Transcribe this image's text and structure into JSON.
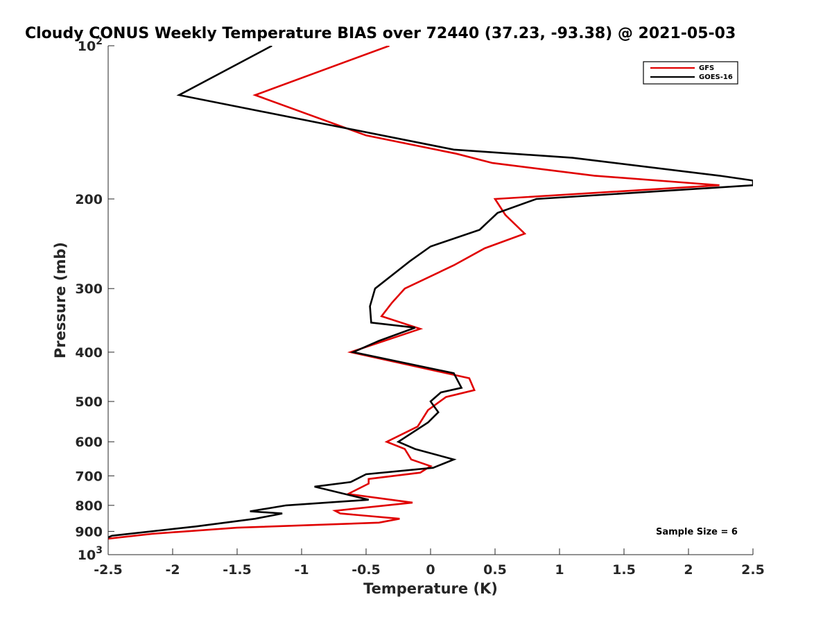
{
  "chart_data": {
    "type": "line",
    "title": "Cloudy CONUS Weekly Temperature BIAS over 72440 (37.23, -93.38) @ 2021-05-03",
    "xlabel": "Temperature (K)",
    "ylabel": "Pressure (mb)",
    "xlim": [
      -2.5,
      2.5
    ],
    "ylim": [
      100,
      1000
    ],
    "y_scale": "log",
    "y_reversed": true,
    "x_ticks": [
      "-2.5",
      "-2",
      "-1.5",
      "-1",
      "-0.5",
      "0",
      "0.5",
      "1",
      "1.5",
      "2",
      "2.5"
    ],
    "y_ticks": [
      {
        "value": 100,
        "base": "10",
        "exp": "2"
      },
      {
        "value": 200,
        "label": "200"
      },
      {
        "value": 300,
        "label": "300"
      },
      {
        "value": 400,
        "label": "400"
      },
      {
        "value": 500,
        "label": "500"
      },
      {
        "value": 600,
        "label": "600"
      },
      {
        "value": 700,
        "label": "700"
      },
      {
        "value": 800,
        "label": "800"
      },
      {
        "value": 900,
        "label": "900"
      },
      {
        "value": 1000,
        "base": "10",
        "exp": "3"
      }
    ],
    "grid": false,
    "legend_position": "top-right",
    "annotation": "Sample Size = 6",
    "series": [
      {
        "name": "GFS",
        "color": "#e00000",
        "points": [
          [
            -0.32,
            100
          ],
          [
            -1.36,
            125
          ],
          [
            -0.5,
            150
          ],
          [
            0.2,
            163
          ],
          [
            0.48,
            170
          ],
          [
            1.27,
            180
          ],
          [
            2.24,
            188
          ],
          [
            0.5,
            200
          ],
          [
            0.58,
            215
          ],
          [
            0.73,
            234
          ],
          [
            0.42,
            250
          ],
          [
            0.18,
            270
          ],
          [
            -0.2,
            300
          ],
          [
            -0.3,
            320
          ],
          [
            -0.38,
            340
          ],
          [
            -0.08,
            360
          ],
          [
            -0.62,
            400
          ],
          [
            0.3,
            450
          ],
          [
            0.34,
            475
          ],
          [
            0.12,
            490
          ],
          [
            -0.02,
            520
          ],
          [
            -0.1,
            560
          ],
          [
            -0.34,
            600
          ],
          [
            -0.2,
            620
          ],
          [
            -0.15,
            650
          ],
          [
            0.0,
            670
          ],
          [
            -0.08,
            690
          ],
          [
            -0.48,
            710
          ],
          [
            -0.48,
            725
          ],
          [
            -0.64,
            760
          ],
          [
            -0.14,
            790
          ],
          [
            -0.74,
            820
          ],
          [
            -0.7,
            830
          ],
          [
            -0.24,
            850
          ],
          [
            -0.4,
            865
          ],
          [
            -1.5,
            885
          ],
          [
            -2.16,
            910
          ],
          [
            -2.5,
            930
          ]
        ]
      },
      {
        "name": "GOES-16",
        "color": "#000000",
        "points": [
          [
            -1.23,
            100
          ],
          [
            -1.95,
            125
          ],
          [
            0.18,
            160
          ],
          [
            1.1,
            166
          ],
          [
            2.24,
            180
          ],
          [
            2.5,
            184
          ],
          [
            2.5,
            188
          ],
          [
            0.82,
            200
          ],
          [
            0.52,
            213
          ],
          [
            0.38,
            230
          ],
          [
            0.0,
            248
          ],
          [
            -0.16,
            265
          ],
          [
            -0.43,
            300
          ],
          [
            -0.47,
            325
          ],
          [
            -0.46,
            350
          ],
          [
            -0.12,
            358
          ],
          [
            -0.4,
            380
          ],
          [
            -0.6,
            400
          ],
          [
            0.18,
            440
          ],
          [
            0.24,
            470
          ],
          [
            0.08,
            480
          ],
          [
            0.0,
            500
          ],
          [
            0.06,
            525
          ],
          [
            -0.02,
            550
          ],
          [
            -0.25,
            600
          ],
          [
            -0.12,
            620
          ],
          [
            0.18,
            650
          ],
          [
            0.02,
            675
          ],
          [
            -0.5,
            695
          ],
          [
            -0.62,
            720
          ],
          [
            -0.9,
            735
          ],
          [
            -0.48,
            780
          ],
          [
            -1.12,
            800
          ],
          [
            -1.4,
            822
          ],
          [
            -1.15,
            830
          ],
          [
            -1.36,
            850
          ],
          [
            -1.82,
            880
          ],
          [
            -2.47,
            918
          ],
          [
            -2.5,
            925
          ]
        ]
      }
    ]
  }
}
